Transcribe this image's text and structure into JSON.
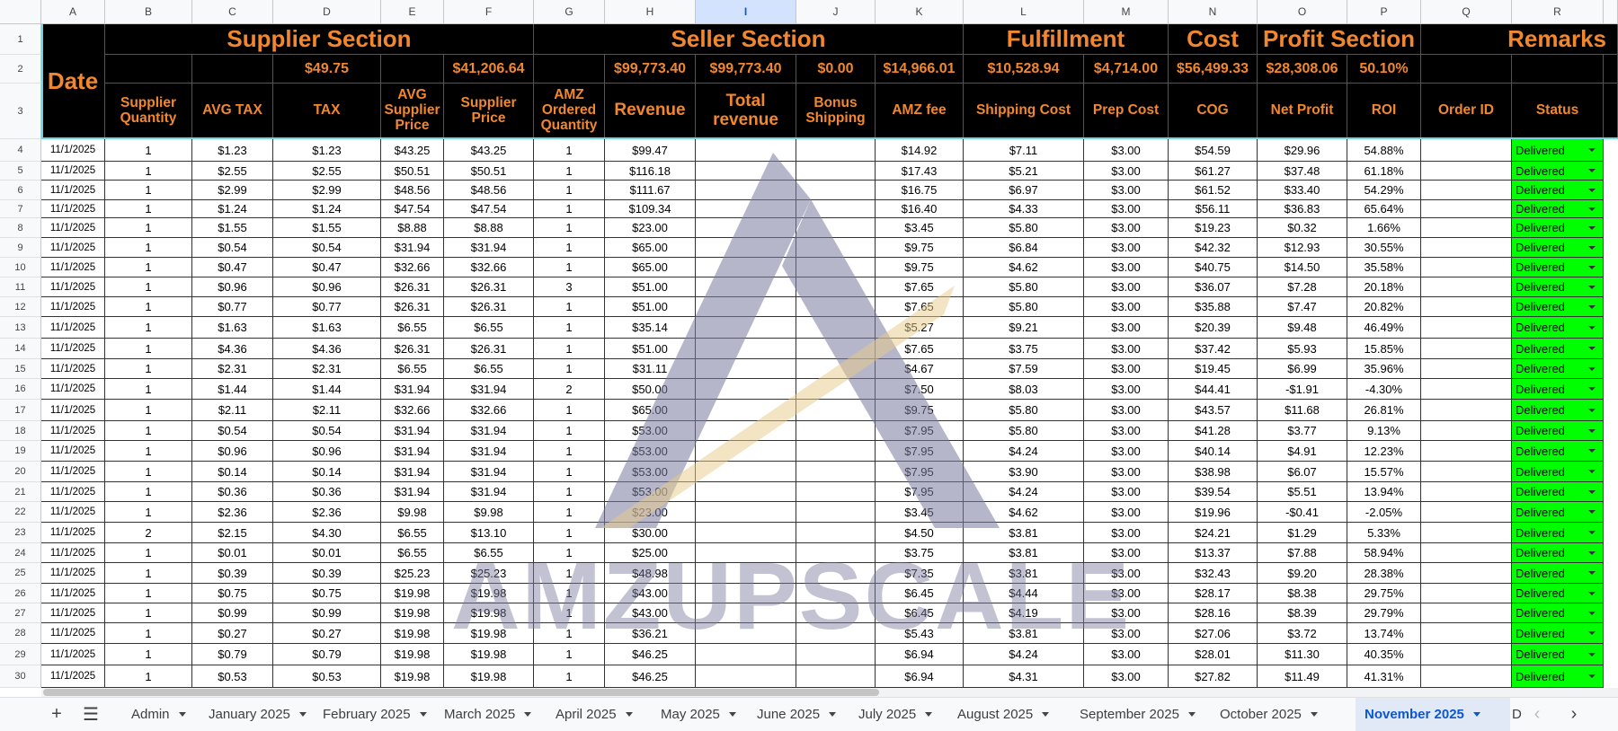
{
  "columns": [
    "A",
    "B",
    "C",
    "D",
    "E",
    "F",
    "G",
    "H",
    "I",
    "J",
    "K",
    "L",
    "M",
    "N",
    "O",
    "P",
    "Q",
    "R"
  ],
  "selected_column": "I",
  "sections": {
    "date": "Date",
    "supplier": "Supplier Section",
    "seller": "Seller Section",
    "fulfillment": "Fulfillment",
    "cost": "Cost",
    "profit": "Profit Section",
    "remarks": "Remarks"
  },
  "totals": {
    "D": "$49.75",
    "F": "$41,206.64",
    "H": "$99,773.40",
    "I": "$99,773.40",
    "J": "$0.00",
    "K": "$14,966.01",
    "L": "$10,528.94",
    "M": "$4,714.00",
    "N": "$56,499.33",
    "O": "$28,308.06",
    "P": "50.10%"
  },
  "headers": {
    "B": "Supplier Quantity",
    "C": "AVG TAX",
    "D": "TAX",
    "E": "AVG Supplier Price",
    "F": "Supplier Price",
    "G": "AMZ Ordered Quantity",
    "H": "Revenue",
    "I": "Total revenue",
    "J": "Bonus Shipping",
    "K": "AMZ fee",
    "L": "Shipping Cost",
    "M": "Prep Cost",
    "N": "COG",
    "O": "Net Profit",
    "P": "ROI",
    "Q": "Order ID",
    "R": "Status"
  },
  "rows": [
    {
      "n": "4",
      "date": "11/1/2025",
      "qty": "1",
      "avgtax": "$1.23",
      "tax": "$1.23",
      "avgsup": "$43.25",
      "sup": "$43.25",
      "amzq": "1",
      "rev": "$99.47",
      "amzfee": "$14.92",
      "ship": "$7.11",
      "prep": "$3.00",
      "cog": "$54.59",
      "net": "$29.96",
      "roi": "54.88%",
      "status": "Delivered"
    },
    {
      "n": "5",
      "date": "11/1/2025",
      "qty": "1",
      "avgtax": "$2.55",
      "tax": "$2.55",
      "avgsup": "$50.51",
      "sup": "$50.51",
      "amzq": "1",
      "rev": "$116.18",
      "amzfee": "$17.43",
      "ship": "$5.21",
      "prep": "$3.00",
      "cog": "$61.27",
      "net": "$37.48",
      "roi": "61.18%",
      "status": "Delivered"
    },
    {
      "n": "6",
      "date": "11/1/2025",
      "qty": "1",
      "avgtax": "$2.99",
      "tax": "$2.99",
      "avgsup": "$48.56",
      "sup": "$48.56",
      "amzq": "1",
      "rev": "$111.67",
      "amzfee": "$16.75",
      "ship": "$6.97",
      "prep": "$3.00",
      "cog": "$61.52",
      "net": "$33.40",
      "roi": "54.29%",
      "status": "Delivered"
    },
    {
      "n": "7",
      "date": "11/1/2025",
      "qty": "1",
      "avgtax": "$1.24",
      "tax": "$1.24",
      "avgsup": "$47.54",
      "sup": "$47.54",
      "amzq": "1",
      "rev": "$109.34",
      "amzfee": "$16.40",
      "ship": "$4.33",
      "prep": "$3.00",
      "cog": "$56.11",
      "net": "$36.83",
      "roi": "65.64%",
      "status": "Delivered"
    },
    {
      "n": "8",
      "date": "11/1/2025",
      "qty": "1",
      "avgtax": "$1.55",
      "tax": "$1.55",
      "avgsup": "$8.88",
      "sup": "$8.88",
      "amzq": "1",
      "rev": "$23.00",
      "amzfee": "$3.45",
      "ship": "$5.80",
      "prep": "$3.00",
      "cog": "$19.23",
      "net": "$0.32",
      "roi": "1.66%",
      "status": "Delivered"
    },
    {
      "n": "9",
      "date": "11/1/2025",
      "qty": "1",
      "avgtax": "$0.54",
      "tax": "$0.54",
      "avgsup": "$31.94",
      "sup": "$31.94",
      "amzq": "1",
      "rev": "$65.00",
      "amzfee": "$9.75",
      "ship": "$6.84",
      "prep": "$3.00",
      "cog": "$42.32",
      "net": "$12.93",
      "roi": "30.55%",
      "status": "Delivered"
    },
    {
      "n": "10",
      "date": "11/1/2025",
      "qty": "1",
      "avgtax": "$0.47",
      "tax": "$0.47",
      "avgsup": "$32.66",
      "sup": "$32.66",
      "amzq": "1",
      "rev": "$65.00",
      "amzfee": "$9.75",
      "ship": "$4.62",
      "prep": "$3.00",
      "cog": "$40.75",
      "net": "$14.50",
      "roi": "35.58%",
      "status": "Delivered"
    },
    {
      "n": "11",
      "date": "11/1/2025",
      "qty": "1",
      "avgtax": "$0.96",
      "tax": "$0.96",
      "avgsup": "$26.31",
      "sup": "$26.31",
      "amzq": "3",
      "rev": "$51.00",
      "amzfee": "$7.65",
      "ship": "$5.80",
      "prep": "$3.00",
      "cog": "$36.07",
      "net": "$7.28",
      "roi": "20.18%",
      "status": "Delivered"
    },
    {
      "n": "12",
      "date": "11/1/2025",
      "qty": "1",
      "avgtax": "$0.77",
      "tax": "$0.77",
      "avgsup": "$26.31",
      "sup": "$26.31",
      "amzq": "1",
      "rev": "$51.00",
      "amzfee": "$7.65",
      "ship": "$5.80",
      "prep": "$3.00",
      "cog": "$35.88",
      "net": "$7.47",
      "roi": "20.82%",
      "status": "Delivered"
    },
    {
      "n": "13",
      "date": "11/1/2025",
      "qty": "1",
      "avgtax": "$1.63",
      "tax": "$1.63",
      "avgsup": "$6.55",
      "sup": "$6.55",
      "amzq": "1",
      "rev": "$35.14",
      "amzfee": "$5.27",
      "ship": "$9.21",
      "prep": "$3.00",
      "cog": "$20.39",
      "net": "$9.48",
      "roi": "46.49%",
      "status": "Delivered"
    },
    {
      "n": "14",
      "date": "11/1/2025",
      "qty": "1",
      "avgtax": "$4.36",
      "tax": "$4.36",
      "avgsup": "$26.31",
      "sup": "$26.31",
      "amzq": "1",
      "rev": "$51.00",
      "amzfee": "$7.65",
      "ship": "$3.75",
      "prep": "$3.00",
      "cog": "$37.42",
      "net": "$5.93",
      "roi": "15.85%",
      "status": "Delivered"
    },
    {
      "n": "15",
      "date": "11/1/2025",
      "qty": "1",
      "avgtax": "$2.31",
      "tax": "$2.31",
      "avgsup": "$6.55",
      "sup": "$6.55",
      "amzq": "1",
      "rev": "$31.11",
      "amzfee": "$4.67",
      "ship": "$7.59",
      "prep": "$3.00",
      "cog": "$19.45",
      "net": "$6.99",
      "roi": "35.96%",
      "status": "Delivered"
    },
    {
      "n": "16",
      "date": "11/1/2025",
      "qty": "1",
      "avgtax": "$1.44",
      "tax": "$1.44",
      "avgsup": "$31.94",
      "sup": "$31.94",
      "amzq": "2",
      "rev": "$50.00",
      "amzfee": "$7.50",
      "ship": "$8.03",
      "prep": "$3.00",
      "cog": "$44.41",
      "net": "-$1.91",
      "roi": "-4.30%",
      "status": "Delivered"
    },
    {
      "n": "17",
      "date": "11/1/2025",
      "qty": "1",
      "avgtax": "$2.11",
      "tax": "$2.11",
      "avgsup": "$32.66",
      "sup": "$32.66",
      "amzq": "1",
      "rev": "$65.00",
      "amzfee": "$9.75",
      "ship": "$5.80",
      "prep": "$3.00",
      "cog": "$43.57",
      "net": "$11.68",
      "roi": "26.81%",
      "status": "Delivered"
    },
    {
      "n": "18",
      "date": "11/1/2025",
      "qty": "1",
      "avgtax": "$0.54",
      "tax": "$0.54",
      "avgsup": "$31.94",
      "sup": "$31.94",
      "amzq": "1",
      "rev": "$53.00",
      "amzfee": "$7.95",
      "ship": "$5.80",
      "prep": "$3.00",
      "cog": "$41.28",
      "net": "$3.77",
      "roi": "9.13%",
      "status": "Delivered"
    },
    {
      "n": "19",
      "date": "11/1/2025",
      "qty": "1",
      "avgtax": "$0.96",
      "tax": "$0.96",
      "avgsup": "$31.94",
      "sup": "$31.94",
      "amzq": "1",
      "rev": "$53.00",
      "amzfee": "$7.95",
      "ship": "$4.24",
      "prep": "$3.00",
      "cog": "$40.14",
      "net": "$4.91",
      "roi": "12.23%",
      "status": "Delivered"
    },
    {
      "n": "20",
      "date": "11/1/2025",
      "qty": "1",
      "avgtax": "$0.14",
      "tax": "$0.14",
      "avgsup": "$31.94",
      "sup": "$31.94",
      "amzq": "1",
      "rev": "$53.00",
      "amzfee": "$7.95",
      "ship": "$3.90",
      "prep": "$3.00",
      "cog": "$38.98",
      "net": "$6.07",
      "roi": "15.57%",
      "status": "Delivered"
    },
    {
      "n": "21",
      "date": "11/1/2025",
      "qty": "1",
      "avgtax": "$0.36",
      "tax": "$0.36",
      "avgsup": "$31.94",
      "sup": "$31.94",
      "amzq": "1",
      "rev": "$53.00",
      "amzfee": "$7.95",
      "ship": "$4.24",
      "prep": "$3.00",
      "cog": "$39.54",
      "net": "$5.51",
      "roi": "13.94%",
      "status": "Delivered"
    },
    {
      "n": "22",
      "date": "11/1/2025",
      "qty": "1",
      "avgtax": "$2.36",
      "tax": "$2.36",
      "avgsup": "$9.98",
      "sup": "$9.98",
      "amzq": "1",
      "rev": "$23.00",
      "amzfee": "$3.45",
      "ship": "$4.62",
      "prep": "$3.00",
      "cog": "$19.96",
      "net": "-$0.41",
      "roi": "-2.05%",
      "status": "Delivered"
    },
    {
      "n": "23",
      "date": "11/1/2025",
      "qty": "2",
      "avgtax": "$2.15",
      "tax": "$4.30",
      "avgsup": "$6.55",
      "sup": "$13.10",
      "amzq": "1",
      "rev": "$30.00",
      "amzfee": "$4.50",
      "ship": "$3.81",
      "prep": "$3.00",
      "cog": "$24.21",
      "net": "$1.29",
      "roi": "5.33%",
      "status": "Delivered"
    },
    {
      "n": "24",
      "date": "11/1/2025",
      "qty": "1",
      "avgtax": "$0.01",
      "tax": "$0.01",
      "avgsup": "$6.55",
      "sup": "$6.55",
      "amzq": "1",
      "rev": "$25.00",
      "amzfee": "$3.75",
      "ship": "$3.81",
      "prep": "$3.00",
      "cog": "$13.37",
      "net": "$7.88",
      "roi": "58.94%",
      "status": "Delivered"
    },
    {
      "n": "25",
      "date": "11/1/2025",
      "qty": "1",
      "avgtax": "$0.39",
      "tax": "$0.39",
      "avgsup": "$25.23",
      "sup": "$25.23",
      "amzq": "1",
      "rev": "$48.98",
      "amzfee": "$7.35",
      "ship": "$3.81",
      "prep": "$3.00",
      "cog": "$32.43",
      "net": "$9.20",
      "roi": "28.38%",
      "status": "Delivered"
    },
    {
      "n": "26",
      "date": "11/1/2025",
      "qty": "1",
      "avgtax": "$0.75",
      "tax": "$0.75",
      "avgsup": "$19.98",
      "sup": "$19.98",
      "amzq": "1",
      "rev": "$43.00",
      "amzfee": "$6.45",
      "ship": "$4.44",
      "prep": "$3.00",
      "cog": "$28.17",
      "net": "$8.38",
      "roi": "29.75%",
      "status": "Delivered"
    },
    {
      "n": "27",
      "date": "11/1/2025",
      "qty": "1",
      "avgtax": "$0.99",
      "tax": "$0.99",
      "avgsup": "$19.98",
      "sup": "$19.98",
      "amzq": "1",
      "rev": "$43.00",
      "amzfee": "$6.45",
      "ship": "$4.19",
      "prep": "$3.00",
      "cog": "$28.16",
      "net": "$8.39",
      "roi": "29.79%",
      "status": "Delivered"
    },
    {
      "n": "28",
      "date": "11/1/2025",
      "qty": "1",
      "avgtax": "$0.27",
      "tax": "$0.27",
      "avgsup": "$19.98",
      "sup": "$19.98",
      "amzq": "1",
      "rev": "$36.21",
      "amzfee": "$5.43",
      "ship": "$3.81",
      "prep": "$3.00",
      "cog": "$27.06",
      "net": "$3.72",
      "roi": "13.74%",
      "status": "Delivered"
    },
    {
      "n": "29",
      "date": "11/1/2025",
      "qty": "1",
      "avgtax": "$0.79",
      "tax": "$0.79",
      "avgsup": "$19.98",
      "sup": "$19.98",
      "amzq": "1",
      "rev": "$46.25",
      "amzfee": "$6.94",
      "ship": "$4.24",
      "prep": "$3.00",
      "cog": "$28.01",
      "net": "$11.30",
      "roi": "40.35%",
      "status": "Delivered"
    },
    {
      "n": "30",
      "date": "11/1/2025",
      "qty": "1",
      "avgtax": "$0.53",
      "tax": "$0.53",
      "avgsup": "$19.98",
      "sup": "$19.98",
      "amzq": "1",
      "rev": "$46.25",
      "amzfee": "$6.94",
      "ship": "$4.31",
      "prep": "$3.00",
      "cog": "$27.82",
      "net": "$11.49",
      "roi": "41.31%",
      "status": "Delivered"
    }
  ],
  "watermark_text": "AMZUPSCALE",
  "tabs": [
    "Admin",
    "January 2025",
    "February 2025",
    "March 2025",
    "April 2025",
    "May 2025",
    "June 2025",
    "July 2025",
    "August 2025",
    "September 2025",
    "October 2025",
    "November 2025"
  ],
  "active_tab": "November 2025",
  "tab_partial": "D",
  "icons": {
    "add": "plus-icon",
    "all_sheets": "menu-icon",
    "prev": "chevron-left-icon",
    "next": "chevron-right-icon"
  },
  "colors": {
    "header_bg": "#000000",
    "header_text": "#f2872e",
    "status_bg": "#00ff00",
    "selected_col": "#d3e3fd",
    "active_tab_bg": "#e1e9f7",
    "active_tab_text": "#0b57d0",
    "accent_line": "#6fd4e0"
  }
}
